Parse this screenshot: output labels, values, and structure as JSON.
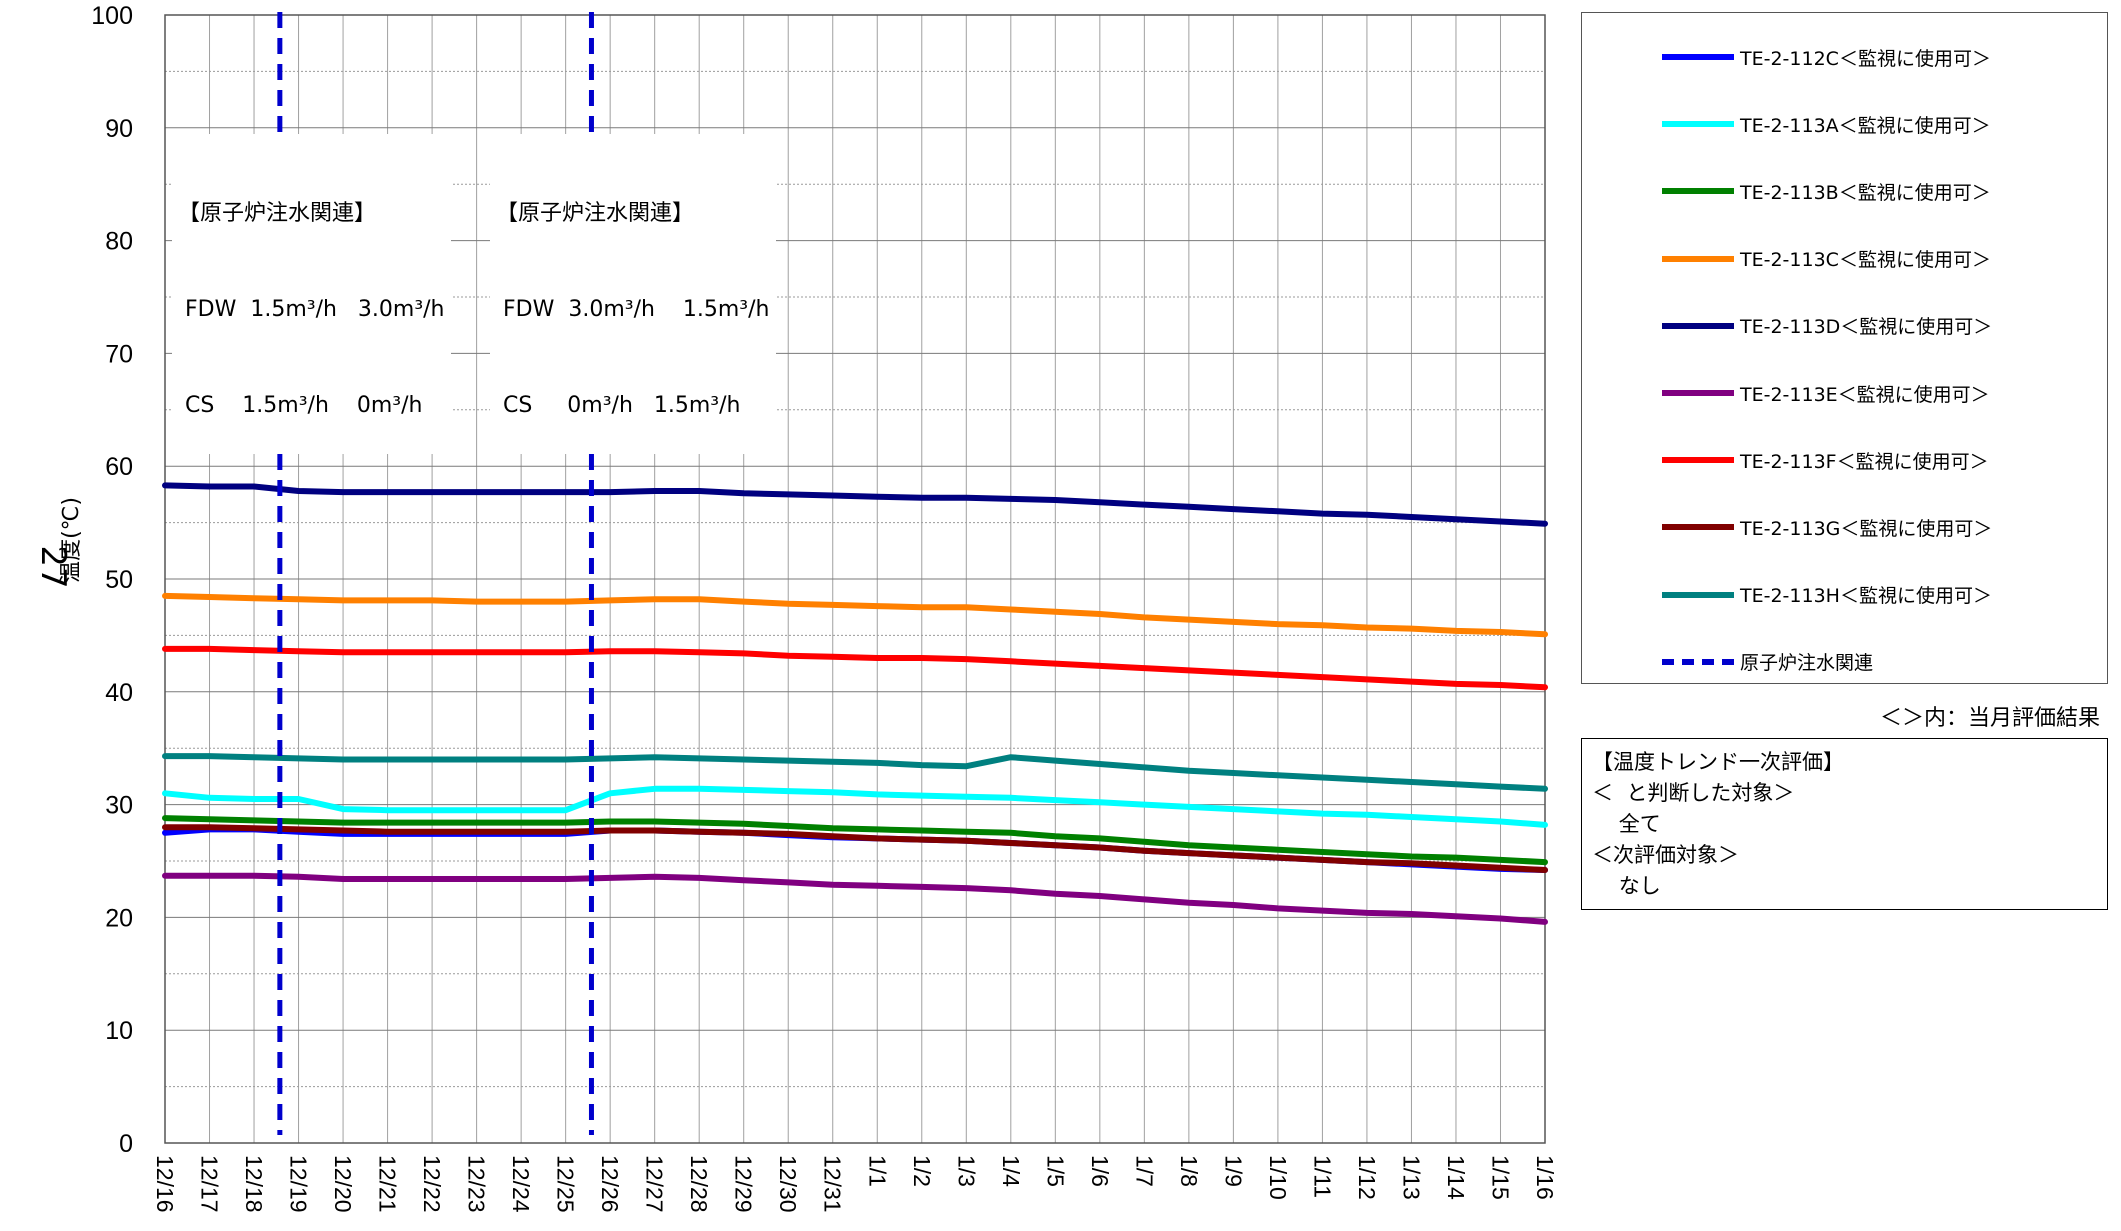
{
  "chart_data": {
    "type": "line",
    "ylabel": "温度(℃)",
    "page_number": "27",
    "ylim": [
      0,
      100
    ],
    "yticks": [
      0,
      10,
      20,
      30,
      40,
      50,
      60,
      70,
      80,
      90,
      100
    ],
    "grid": true,
    "legend_position": "right",
    "categories": [
      "12/16",
      "12/17",
      "12/18",
      "12/19",
      "12/20",
      "12/21",
      "12/22",
      "12/23",
      "12/24",
      "12/25",
      "12/26",
      "12/27",
      "12/28",
      "12/29",
      "12/30",
      "12/31",
      "1/1",
      "1/2",
      "1/3",
      "1/4",
      "1/5",
      "1/6",
      "1/7",
      "1/8",
      "1/9",
      "1/10",
      "1/11",
      "1/12",
      "1/13",
      "1/14",
      "1/15",
      "1/16"
    ],
    "series": [
      {
        "name": "TE-2-112C＜監視に使用可＞",
        "color": "#0000ff",
        "values": [
          27.5,
          27.8,
          27.8,
          27.6,
          27.4,
          27.4,
          27.4,
          27.4,
          27.4,
          27.4,
          27.7,
          27.7,
          27.6,
          27.5,
          27.3,
          27.1,
          27.0,
          26.9,
          26.8,
          26.6,
          26.4,
          26.2,
          25.9,
          25.7,
          25.5,
          25.3,
          25.1,
          24.9,
          24.7,
          24.5,
          24.3,
          24.2
        ]
      },
      {
        "name": "TE-2-113A＜監視に使用可＞",
        "color": "#00ffff",
        "values": [
          31.0,
          30.6,
          30.5,
          30.5,
          29.6,
          29.5,
          29.5,
          29.5,
          29.5,
          29.5,
          31.0,
          31.4,
          31.4,
          31.3,
          31.2,
          31.1,
          30.9,
          30.8,
          30.7,
          30.6,
          30.4,
          30.2,
          30.0,
          29.8,
          29.6,
          29.4,
          29.2,
          29.1,
          28.9,
          28.7,
          28.5,
          28.2
        ]
      },
      {
        "name": "TE-2-113B＜監視に使用可＞",
        "color": "#008000",
        "values": [
          28.8,
          28.7,
          28.6,
          28.5,
          28.4,
          28.4,
          28.4,
          28.4,
          28.4,
          28.4,
          28.5,
          28.5,
          28.4,
          28.3,
          28.1,
          27.9,
          27.8,
          27.7,
          27.6,
          27.5,
          27.2,
          27.0,
          26.7,
          26.4,
          26.2,
          26.0,
          25.8,
          25.6,
          25.4,
          25.3,
          25.1,
          24.9
        ]
      },
      {
        "name": "TE-2-113C＜監視に使用可＞",
        "color": "#ff8000",
        "values": [
          48.5,
          48.4,
          48.3,
          48.2,
          48.1,
          48.1,
          48.1,
          48.0,
          48.0,
          48.0,
          48.1,
          48.2,
          48.2,
          48.0,
          47.8,
          47.7,
          47.6,
          47.5,
          47.5,
          47.3,
          47.1,
          46.9,
          46.6,
          46.4,
          46.2,
          46.0,
          45.9,
          45.7,
          45.6,
          45.4,
          45.3,
          45.1
        ]
      },
      {
        "name": "TE-2-113D＜監視に使用可＞",
        "color": "#000080",
        "values": [
          58.3,
          58.2,
          58.2,
          57.8,
          57.7,
          57.7,
          57.7,
          57.7,
          57.7,
          57.7,
          57.7,
          57.8,
          57.8,
          57.6,
          57.5,
          57.4,
          57.3,
          57.2,
          57.2,
          57.1,
          57.0,
          56.8,
          56.6,
          56.4,
          56.2,
          56.0,
          55.8,
          55.7,
          55.5,
          55.3,
          55.1,
          54.9
        ]
      },
      {
        "name": "TE-2-113E＜監視に使用可＞",
        "color": "#800080",
        "values": [
          23.7,
          23.7,
          23.7,
          23.6,
          23.4,
          23.4,
          23.4,
          23.4,
          23.4,
          23.4,
          23.5,
          23.6,
          23.5,
          23.3,
          23.1,
          22.9,
          22.8,
          22.7,
          22.6,
          22.4,
          22.1,
          21.9,
          21.6,
          21.3,
          21.1,
          20.8,
          20.6,
          20.4,
          20.3,
          20.1,
          19.9,
          19.6
        ]
      },
      {
        "name": "TE-2-113F＜監視に使用可＞",
        "color": "#ff0000",
        "values": [
          43.8,
          43.8,
          43.7,
          43.6,
          43.5,
          43.5,
          43.5,
          43.5,
          43.5,
          43.5,
          43.6,
          43.6,
          43.5,
          43.4,
          43.2,
          43.1,
          43.0,
          43.0,
          42.9,
          42.7,
          42.5,
          42.3,
          42.1,
          41.9,
          41.7,
          41.5,
          41.3,
          41.1,
          40.9,
          40.7,
          40.6,
          40.4
        ]
      },
      {
        "name": "TE-2-113G＜監視に使用可＞",
        "color": "#800000",
        "values": [
          28.0,
          28.0,
          27.9,
          27.8,
          27.7,
          27.6,
          27.6,
          27.6,
          27.6,
          27.6,
          27.7,
          27.7,
          27.6,
          27.5,
          27.4,
          27.2,
          27.0,
          26.9,
          26.8,
          26.6,
          26.4,
          26.2,
          25.9,
          25.7,
          25.5,
          25.3,
          25.1,
          24.9,
          24.8,
          24.6,
          24.4,
          24.2
        ]
      },
      {
        "name": "TE-2-113H＜監視に使用可＞",
        "color": "#008080",
        "values": [
          34.3,
          34.3,
          34.2,
          34.1,
          34.0,
          34.0,
          34.0,
          34.0,
          34.0,
          34.0,
          34.1,
          34.2,
          34.1,
          34.0,
          33.9,
          33.8,
          33.7,
          33.5,
          33.4,
          34.2,
          33.9,
          33.6,
          33.3,
          33.0,
          32.8,
          32.6,
          32.4,
          32.2,
          32.0,
          31.8,
          31.6,
          31.4
        ]
      }
    ],
    "event_lines": {
      "name": "原子炉注水関連",
      "color": "#0000cc",
      "positions": [
        "12/18",
        "12/25"
      ],
      "offsets_days": [
        0.58,
        0.58
      ]
    },
    "annotations": [
      {
        "lines": [
          "【原子炉注水関連】",
          " FDW  1.5m³/h   3.0m³/h",
          " CS    1.5m³/h    0m³/h"
        ]
      },
      {
        "lines": [
          "【原子炉注水関連】",
          " FDW  3.0m³/h    1.5m³/h",
          " CS     0m³/h   1.5m³/h"
        ]
      }
    ]
  },
  "legend_note": "＜＞内：当月評価結果",
  "evaluation_box": {
    "lines": [
      "【温度トレンド一次評価】",
      "＜  と判断した対象＞",
      "    全て",
      "＜次評価対象＞",
      "    なし"
    ]
  }
}
